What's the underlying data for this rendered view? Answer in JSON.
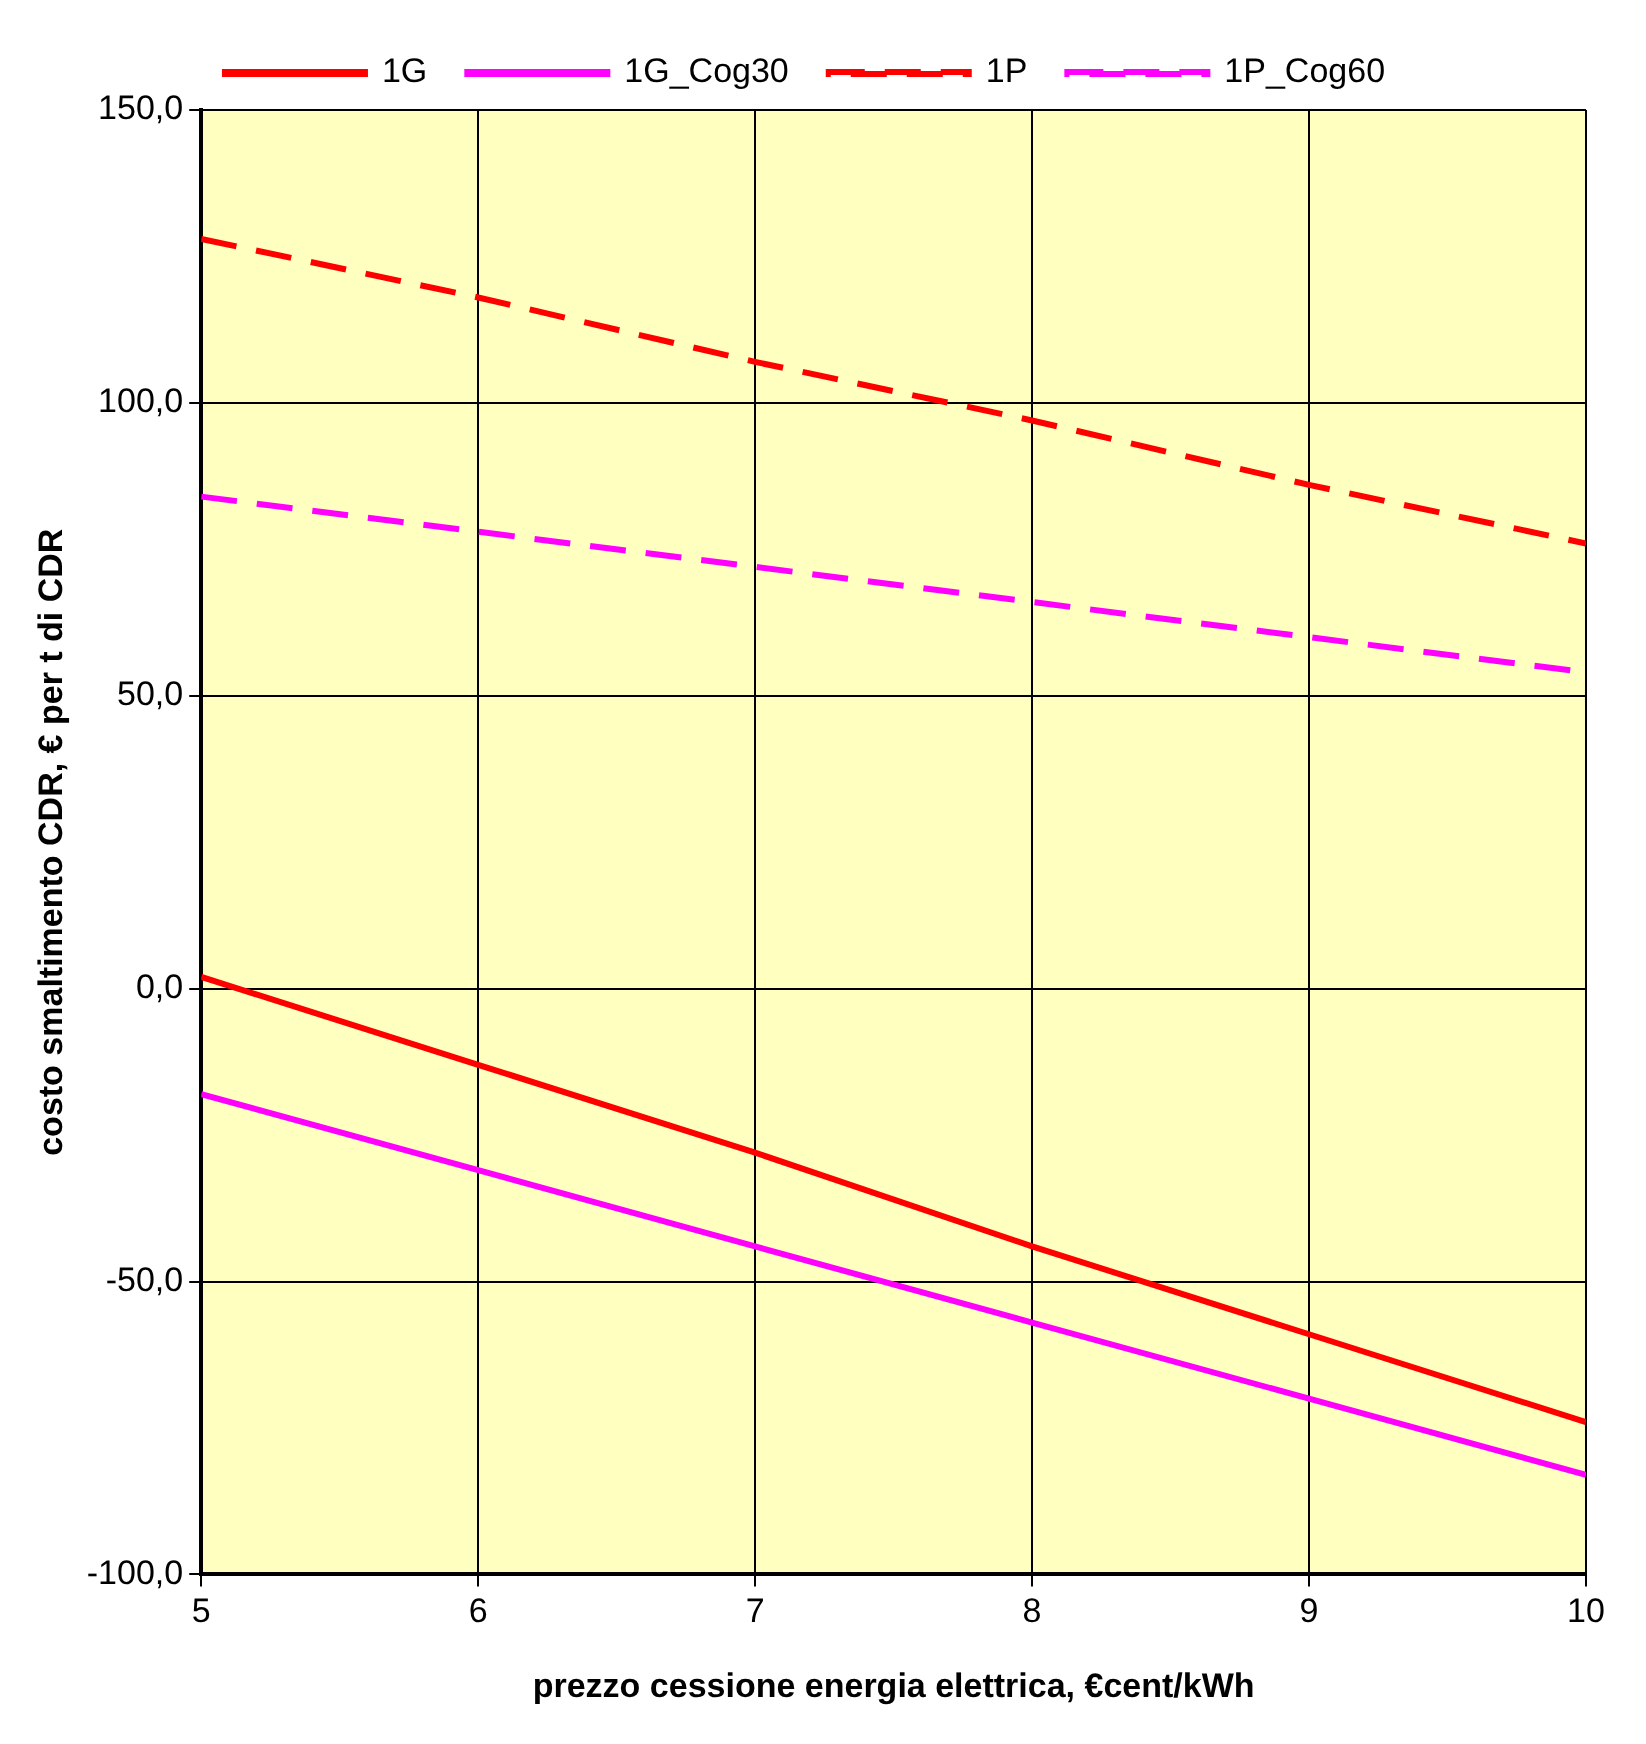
{
  "chart_data": {
    "type": "line",
    "xlabel": "prezzo cessione energia elettrica, €cent/kWh",
    "ylabel": "costo smaltimento CDR, € per t di CDR",
    "x": [
      5,
      6,
      7,
      8,
      9,
      10
    ],
    "series": [
      {
        "name": "1G",
        "color": "#ff0000",
        "values": [
          2,
          -13,
          -28,
          -44,
          -59,
          -74
        ],
        "line_style": "solid"
      },
      {
        "name": "1G_Cog30",
        "color": "#ff00ff",
        "values": [
          -18,
          -31,
          -44,
          -57,
          -70,
          -83
        ],
        "line_style": "solid"
      },
      {
        "name": "1P",
        "color": "#ff0000",
        "values": [
          128,
          118,
          107,
          97,
          86,
          76
        ],
        "line_style": "dashed"
      },
      {
        "name": "1P_Cog60",
        "color": "#ff00ff",
        "values": [
          84,
          78,
          72,
          66,
          60,
          54
        ],
        "line_style": "dashed"
      }
    ],
    "xlim": [
      5,
      10
    ],
    "xticks": [
      5,
      6,
      7,
      8,
      9,
      10
    ],
    "ylim": [
      -100,
      150
    ],
    "yticks": [
      {
        "value": -100,
        "label": "-100,0"
      },
      {
        "value": -50,
        "label": "-50,0"
      },
      {
        "value": 0,
        "label": "0,0"
      },
      {
        "value": 50,
        "label": "50,0"
      },
      {
        "value": 100,
        "label": "100,0"
      },
      {
        "value": 150,
        "label": "150,0"
      }
    ],
    "grid": true,
    "legend": "top",
    "marker": "none"
  }
}
